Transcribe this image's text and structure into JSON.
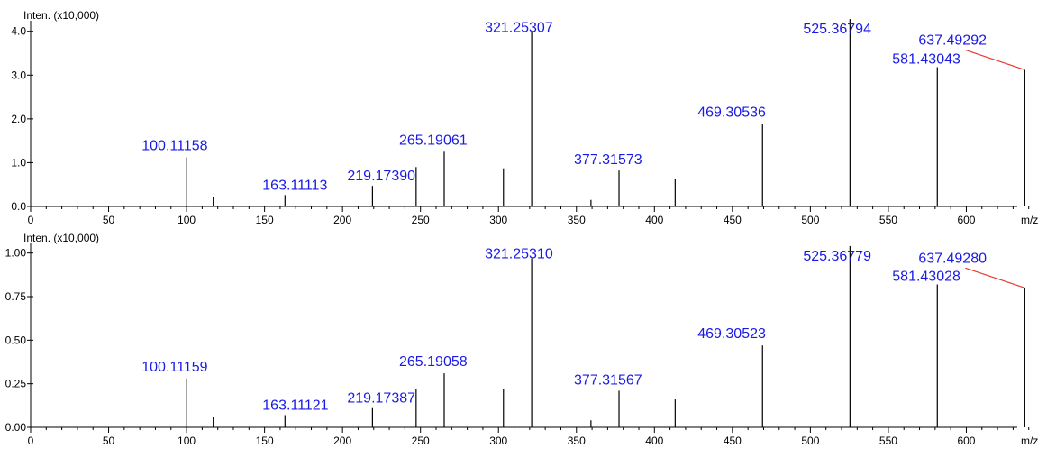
{
  "chart_data": [
    {
      "type": "bar",
      "ylabel": "Inten. (x10,000)",
      "xlabel": "m/z",
      "xlim": [
        0,
        650
      ],
      "ylim": [
        0,
        4.2
      ],
      "yticks": [
        "0.0",
        "1.0",
        "2.0",
        "3.0",
        "4.0"
      ],
      "ytick_values": [
        0,
        1,
        2,
        3,
        4
      ],
      "xticks": [
        "0",
        "50",
        "100",
        "150",
        "200",
        "250",
        "300",
        "350",
        "400",
        "450",
        "500",
        "550",
        "600"
      ],
      "peaks": [
        {
          "mz": 100.1,
          "intensity": 1.12,
          "label": "100.11158"
        },
        {
          "mz": 117.1,
          "intensity": 0.22,
          "label": ""
        },
        {
          "mz": 163.1,
          "intensity": 0.26,
          "label": "163.11113"
        },
        {
          "mz": 219.2,
          "intensity": 0.47,
          "label": "219.17390"
        },
        {
          "mz": 247.2,
          "intensity": 0.9,
          "label": ""
        },
        {
          "mz": 265.2,
          "intensity": 1.25,
          "label": "265.19061"
        },
        {
          "mz": 303.2,
          "intensity": 0.87,
          "label": ""
        },
        {
          "mz": 321.3,
          "intensity": 3.98,
          "label": "321.25307"
        },
        {
          "mz": 359.3,
          "intensity": 0.15,
          "label": ""
        },
        {
          "mz": 377.3,
          "intensity": 0.82,
          "label": "377.31573"
        },
        {
          "mz": 413.3,
          "intensity": 0.62,
          "label": ""
        },
        {
          "mz": 469.3,
          "intensity": 1.88,
          "label": "469.30536"
        },
        {
          "mz": 525.4,
          "intensity": 4.28,
          "label": "525.36794"
        },
        {
          "mz": 581.4,
          "intensity": 3.18,
          "label": "581.43043"
        },
        {
          "mz": 637.5,
          "intensity": 3.12,
          "label": "637.49292"
        }
      ]
    },
    {
      "type": "bar",
      "ylabel": "Inten. (x10,000)",
      "xlabel": "m/z",
      "xlim": [
        0,
        650
      ],
      "ylim": [
        0,
        1.05
      ],
      "yticks": [
        "0.00",
        "0.25",
        "0.50",
        "0.75",
        "1.00"
      ],
      "ytick_values": [
        0,
        0.25,
        0.5,
        0.75,
        1.0
      ],
      "xticks": [
        "0",
        "50",
        "100",
        "150",
        "200",
        "250",
        "300",
        "350",
        "400",
        "450",
        "500",
        "550",
        "600"
      ],
      "peaks": [
        {
          "mz": 100.1,
          "intensity": 0.28,
          "label": "100.11159"
        },
        {
          "mz": 117.1,
          "intensity": 0.06,
          "label": ""
        },
        {
          "mz": 163.1,
          "intensity": 0.07,
          "label": "163.11121"
        },
        {
          "mz": 219.2,
          "intensity": 0.11,
          "label": "219.17387"
        },
        {
          "mz": 247.2,
          "intensity": 0.22,
          "label": ""
        },
        {
          "mz": 265.2,
          "intensity": 0.31,
          "label": "265.19058"
        },
        {
          "mz": 303.2,
          "intensity": 0.22,
          "label": ""
        },
        {
          "mz": 321.3,
          "intensity": 0.97,
          "label": "321.25310"
        },
        {
          "mz": 359.3,
          "intensity": 0.04,
          "label": ""
        },
        {
          "mz": 377.3,
          "intensity": 0.21,
          "label": "377.31567"
        },
        {
          "mz": 413.3,
          "intensity": 0.16,
          "label": ""
        },
        {
          "mz": 469.3,
          "intensity": 0.47,
          "label": "469.30523"
        },
        {
          "mz": 525.4,
          "intensity": 1.04,
          "label": "525.36779"
        },
        {
          "mz": 581.4,
          "intensity": 0.82,
          "label": "581.43028"
        },
        {
          "mz": 637.5,
          "intensity": 0.8,
          "label": "637.49280"
        }
      ]
    }
  ]
}
